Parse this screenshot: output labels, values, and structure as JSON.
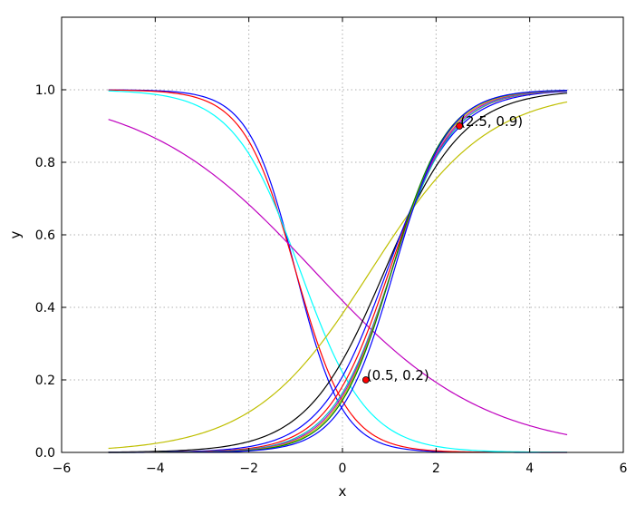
{
  "chart_data": {
    "type": "line",
    "title": "",
    "xlabel": "x",
    "ylabel": "y",
    "xlim": [
      -6,
      6
    ],
    "ylim": [
      0,
      1.2
    ],
    "xticks": [
      -6,
      -4,
      -2,
      0,
      2,
      4,
      6
    ],
    "yticks": [
      0.0,
      0.2,
      0.4,
      0.6,
      0.8,
      1.0
    ],
    "xtick_labels": [
      "−6",
      "−4",
      "−2",
      "0",
      "2",
      "4",
      "6"
    ],
    "ytick_labels": [
      "0.0",
      "0.2",
      "0.4",
      "0.6",
      "0.8",
      "1.0"
    ],
    "grid": true,
    "x_range": [
      -5,
      4.8
    ],
    "series": [
      {
        "color": "#0000ff",
        "kind": "sigmoid",
        "mid": -1.0,
        "k": -2.0
      },
      {
        "color": "#ff0000",
        "kind": "sigmoid",
        "mid": -1.0,
        "k": -1.8
      },
      {
        "color": "#00ffff",
        "kind": "sigmoid",
        "mid": -0.9,
        "k": -1.4
      },
      {
        "color": "#bf00bf",
        "kind": "sigmoid",
        "mid": -0.6,
        "k": -0.55
      },
      {
        "color": "#bfbf00",
        "kind": "sigmoid",
        "mid": 0.6,
        "k": 0.8
      },
      {
        "color": "#000000",
        "kind": "sigmoid",
        "mid": 0.9,
        "k": 1.2
      },
      {
        "color": "#0000ff",
        "kind": "sigmoid",
        "mid": 0.95,
        "k": 1.4
      },
      {
        "color": "#ff0000",
        "kind": "sigmoid",
        "mid": 1.0,
        "k": 1.5
      },
      {
        "color": "#00bfbf",
        "kind": "sigmoid",
        "mid": 1.05,
        "k": 1.55
      },
      {
        "color": "#bf00bf",
        "kind": "sigmoid",
        "mid": 1.05,
        "k": 1.6
      },
      {
        "color": "#bfbf00",
        "kind": "sigmoid",
        "mid": 1.05,
        "k": 1.65
      },
      {
        "color": "#008000",
        "kind": "sigmoid",
        "mid": 1.05,
        "k": 1.7
      },
      {
        "color": "#0000ff",
        "kind": "sigmoid",
        "mid": 1.1,
        "k": 1.75
      }
    ],
    "points": [
      {
        "x": 0.5,
        "y": 0.2,
        "label": "(0.5, 0.2)",
        "color": "#ff0000"
      },
      {
        "x": 2.5,
        "y": 0.9,
        "label": "(2.5, 0.9)",
        "color": "#ff0000"
      }
    ]
  }
}
